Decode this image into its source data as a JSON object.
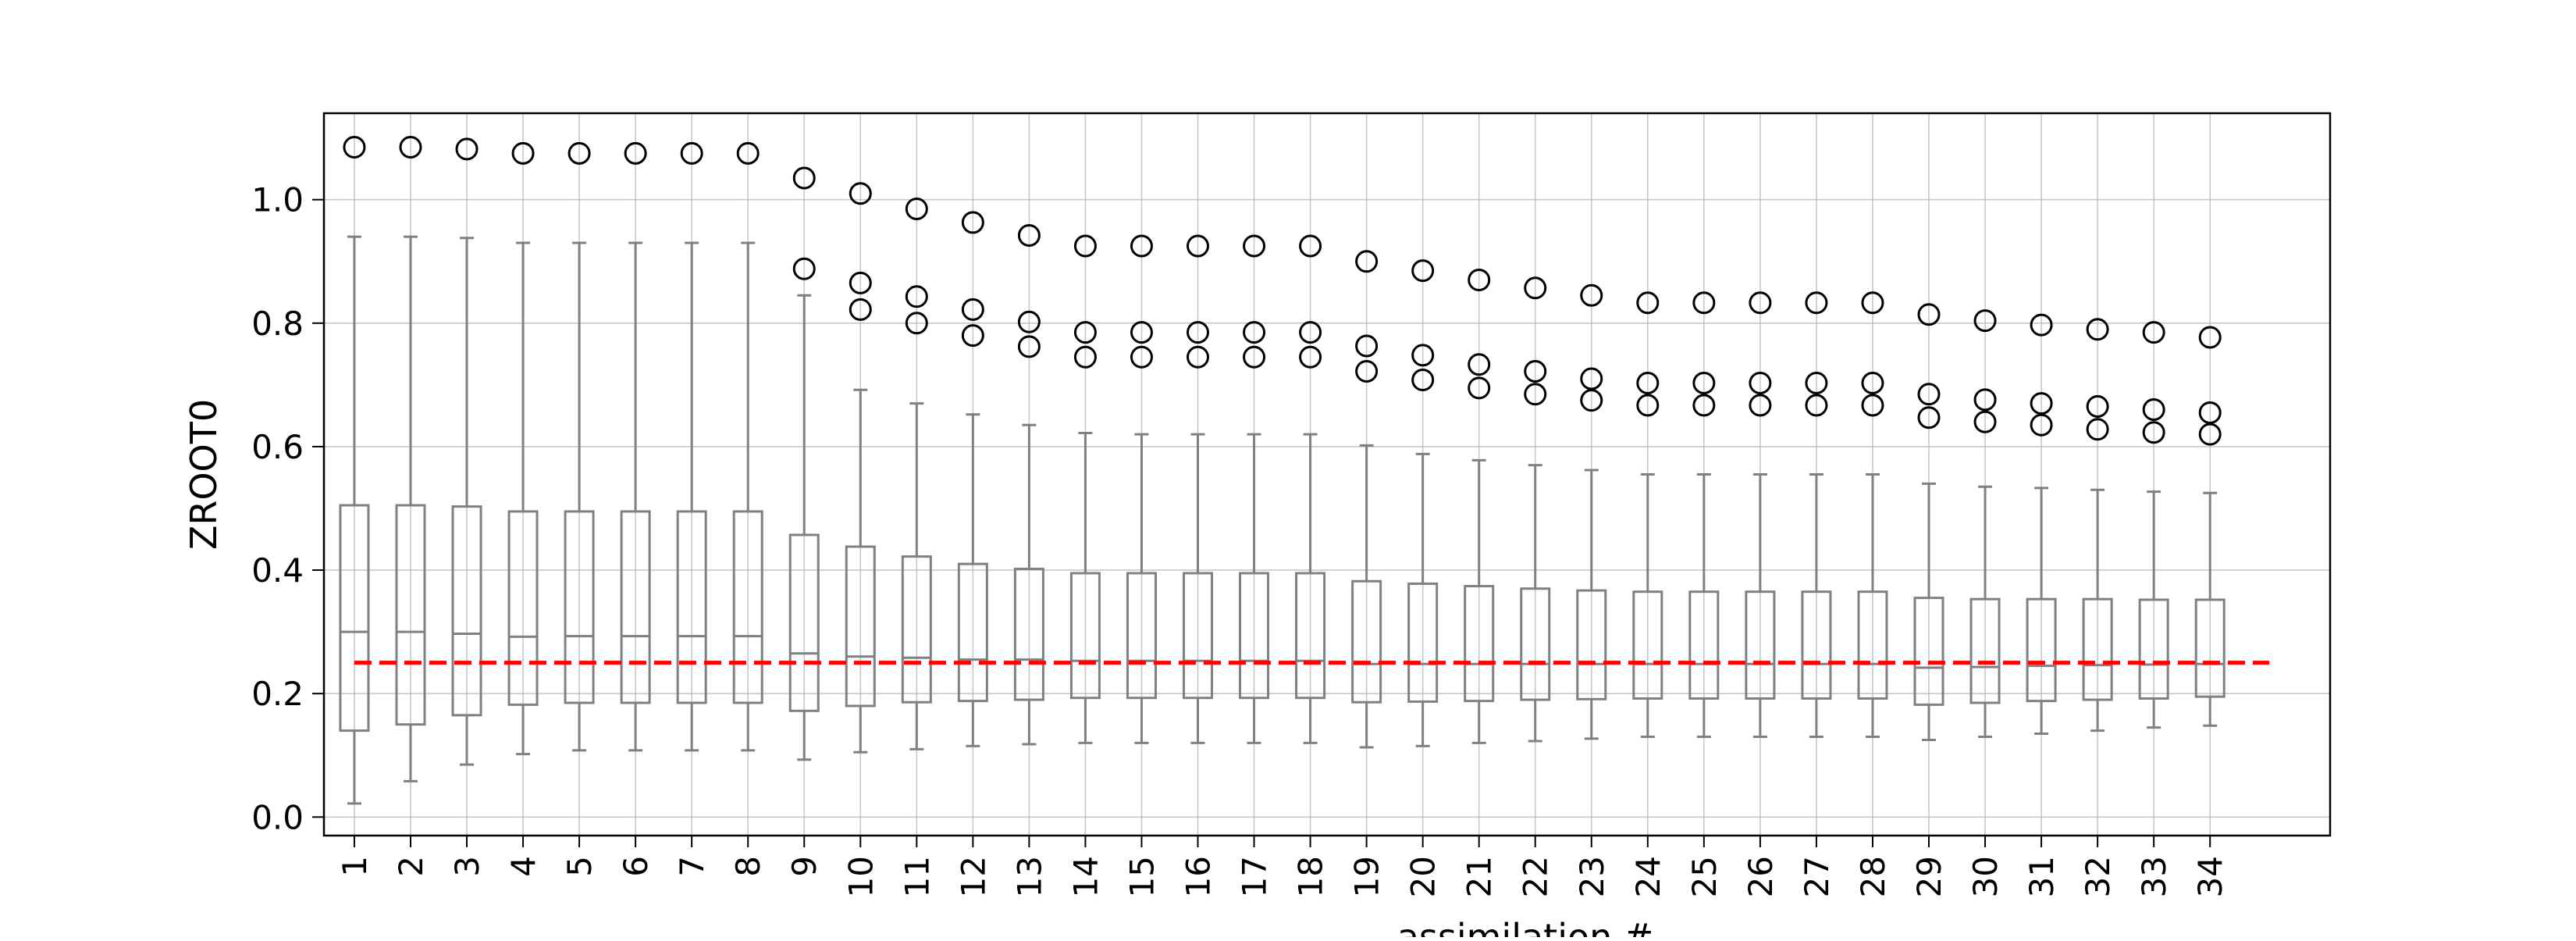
{
  "chart_data": {
    "type": "box",
    "title": "",
    "xlabel": "assimilation #",
    "ylabel": "ZROOT0",
    "categories": [
      "1",
      "2",
      "3",
      "4",
      "5",
      "6",
      "7",
      "8",
      "9",
      "10",
      "11",
      "12",
      "13",
      "14",
      "15",
      "16",
      "17",
      "18",
      "19",
      "20",
      "21",
      "22",
      "23",
      "24",
      "25",
      "26",
      "27",
      "28",
      "29",
      "30",
      "31",
      "32",
      "33",
      "34"
    ],
    "xlim": [
      -1,
      65
    ],
    "ylim": [
      -0.03,
      1.14
    ],
    "yticks": [
      0.0,
      0.2,
      0.4,
      0.6,
      0.8,
      1.0
    ],
    "ytick_labels": [
      "0.0",
      "0.2",
      "0.4",
      "0.6",
      "0.8",
      "1.0"
    ],
    "grid": true,
    "reference_line": {
      "y": 0.25,
      "x_start": 0,
      "x_end": 63,
      "color": "#ff0000",
      "style": "dashed"
    },
    "box_color": "#808080",
    "boxes": [
      {
        "whislo": 0.022,
        "q1": 0.14,
        "med": 0.3,
        "q3": 0.505,
        "whishi": 0.94,
        "fliers": [
          1.085
        ]
      },
      {
        "whislo": 0.058,
        "q1": 0.15,
        "med": 0.3,
        "q3": 0.505,
        "whishi": 0.94,
        "fliers": [
          1.085
        ]
      },
      {
        "whislo": 0.085,
        "q1": 0.165,
        "med": 0.297,
        "q3": 0.503,
        "whishi": 0.938,
        "fliers": [
          1.082
        ]
      },
      {
        "whislo": 0.102,
        "q1": 0.182,
        "med": 0.292,
        "q3": 0.495,
        "whishi": 0.93,
        "fliers": [
          1.075
        ]
      },
      {
        "whislo": 0.108,
        "q1": 0.185,
        "med": 0.293,
        "q3": 0.495,
        "whishi": 0.93,
        "fliers": [
          1.075
        ]
      },
      {
        "whislo": 0.108,
        "q1": 0.185,
        "med": 0.293,
        "q3": 0.495,
        "whishi": 0.93,
        "fliers": [
          1.075
        ]
      },
      {
        "whislo": 0.108,
        "q1": 0.185,
        "med": 0.293,
        "q3": 0.495,
        "whishi": 0.93,
        "fliers": [
          1.075
        ]
      },
      {
        "whislo": 0.108,
        "q1": 0.185,
        "med": 0.293,
        "q3": 0.495,
        "whishi": 0.93,
        "fliers": [
          1.075
        ]
      },
      {
        "whislo": 0.093,
        "q1": 0.172,
        "med": 0.265,
        "q3": 0.457,
        "whishi": 0.845,
        "fliers": [
          1.035,
          0.888
        ]
      },
      {
        "whislo": 0.105,
        "q1": 0.18,
        "med": 0.26,
        "q3": 0.438,
        "whishi": 0.692,
        "fliers": [
          1.01,
          0.865,
          0.822
        ]
      },
      {
        "whislo": 0.11,
        "q1": 0.186,
        "med": 0.258,
        "q3": 0.422,
        "whishi": 0.67,
        "fliers": [
          0.985,
          0.843,
          0.8
        ]
      },
      {
        "whislo": 0.115,
        "q1": 0.188,
        "med": 0.255,
        "q3": 0.41,
        "whishi": 0.652,
        "fliers": [
          0.963,
          0.822,
          0.78
        ]
      },
      {
        "whislo": 0.118,
        "q1": 0.19,
        "med": 0.255,
        "q3": 0.402,
        "whishi": 0.635,
        "fliers": [
          0.942,
          0.802,
          0.762
        ]
      },
      {
        "whislo": 0.12,
        "q1": 0.193,
        "med": 0.253,
        "q3": 0.395,
        "whishi": 0.622,
        "fliers": [
          0.925,
          0.785,
          0.745
        ]
      },
      {
        "whislo": 0.12,
        "q1": 0.193,
        "med": 0.253,
        "q3": 0.395,
        "whishi": 0.62,
        "fliers": [
          0.925,
          0.785,
          0.745
        ]
      },
      {
        "whislo": 0.12,
        "q1": 0.193,
        "med": 0.253,
        "q3": 0.395,
        "whishi": 0.62,
        "fliers": [
          0.925,
          0.785,
          0.745
        ]
      },
      {
        "whislo": 0.12,
        "q1": 0.193,
        "med": 0.253,
        "q3": 0.395,
        "whishi": 0.62,
        "fliers": [
          0.925,
          0.785,
          0.745
        ]
      },
      {
        "whislo": 0.12,
        "q1": 0.193,
        "med": 0.253,
        "q3": 0.395,
        "whishi": 0.62,
        "fliers": [
          0.925,
          0.785,
          0.745
        ]
      },
      {
        "whislo": 0.113,
        "q1": 0.186,
        "med": 0.248,
        "q3": 0.382,
        "whishi": 0.602,
        "fliers": [
          0.9,
          0.763,
          0.722
        ]
      },
      {
        "whislo": 0.115,
        "q1": 0.187,
        "med": 0.248,
        "q3": 0.378,
        "whishi": 0.588,
        "fliers": [
          0.885,
          0.748,
          0.708
        ]
      },
      {
        "whislo": 0.12,
        "q1": 0.188,
        "med": 0.248,
        "q3": 0.374,
        "whishi": 0.578,
        "fliers": [
          0.87,
          0.733,
          0.695
        ]
      },
      {
        "whislo": 0.123,
        "q1": 0.19,
        "med": 0.248,
        "q3": 0.37,
        "whishi": 0.57,
        "fliers": [
          0.857,
          0.722,
          0.685
        ]
      },
      {
        "whislo": 0.127,
        "q1": 0.191,
        "med": 0.248,
        "q3": 0.367,
        "whishi": 0.562,
        "fliers": [
          0.845,
          0.71,
          0.675
        ]
      },
      {
        "whislo": 0.13,
        "q1": 0.192,
        "med": 0.248,
        "q3": 0.365,
        "whishi": 0.555,
        "fliers": [
          0.833,
          0.703,
          0.667
        ]
      },
      {
        "whislo": 0.13,
        "q1": 0.192,
        "med": 0.248,
        "q3": 0.365,
        "whishi": 0.555,
        "fliers": [
          0.833,
          0.703,
          0.667
        ]
      },
      {
        "whislo": 0.13,
        "q1": 0.192,
        "med": 0.248,
        "q3": 0.365,
        "whishi": 0.555,
        "fliers": [
          0.833,
          0.703,
          0.667
        ]
      },
      {
        "whislo": 0.13,
        "q1": 0.192,
        "med": 0.248,
        "q3": 0.365,
        "whishi": 0.555,
        "fliers": [
          0.833,
          0.703,
          0.667
        ]
      },
      {
        "whislo": 0.13,
        "q1": 0.192,
        "med": 0.248,
        "q3": 0.365,
        "whishi": 0.555,
        "fliers": [
          0.833,
          0.703,
          0.667
        ]
      },
      {
        "whislo": 0.125,
        "q1": 0.182,
        "med": 0.242,
        "q3": 0.355,
        "whishi": 0.54,
        "fliers": [
          0.814,
          0.685,
          0.647
        ]
      },
      {
        "whislo": 0.13,
        "q1": 0.185,
        "med": 0.243,
        "q3": 0.353,
        "whishi": 0.535,
        "fliers": [
          0.804,
          0.676,
          0.64
        ]
      },
      {
        "whislo": 0.135,
        "q1": 0.188,
        "med": 0.245,
        "q3": 0.353,
        "whishi": 0.533,
        "fliers": [
          0.797,
          0.67,
          0.635
        ]
      },
      {
        "whislo": 0.14,
        "q1": 0.19,
        "med": 0.246,
        "q3": 0.353,
        "whishi": 0.53,
        "fliers": [
          0.79,
          0.665,
          0.628
        ]
      },
      {
        "whislo": 0.145,
        "q1": 0.192,
        "med": 0.247,
        "q3": 0.352,
        "whishi": 0.527,
        "fliers": [
          0.785,
          0.66,
          0.623
        ]
      },
      {
        "whislo": 0.148,
        "q1": 0.195,
        "med": 0.248,
        "q3": 0.352,
        "whishi": 0.525,
        "fliers": [
          0.777,
          0.655,
          0.62
        ]
      }
    ]
  }
}
